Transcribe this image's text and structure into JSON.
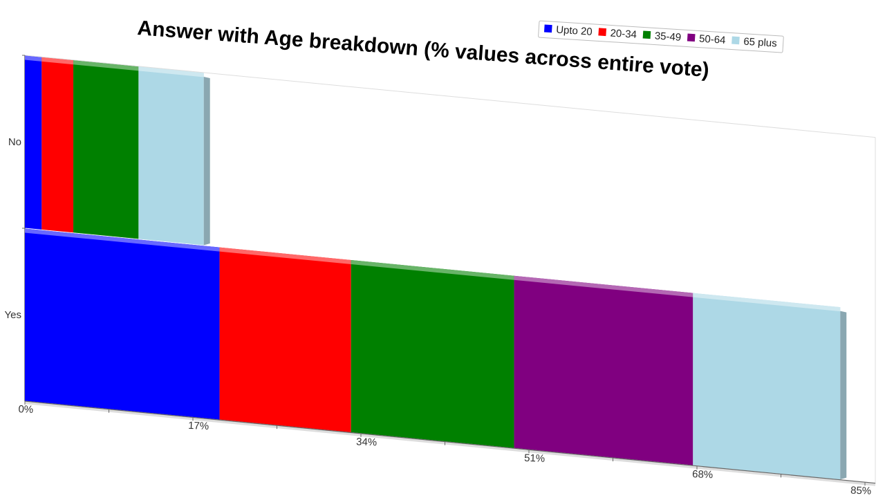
{
  "chart_data": {
    "type": "bar",
    "orientation": "horizontal",
    "stacked": true,
    "three_d": true,
    "title": "Answer with Age breakdown (% values across entire vote)",
    "categories": [
      "No",
      "Yes"
    ],
    "series": [
      {
        "name": "Upto 20",
        "color": "#0000ff",
        "values": [
          1.7,
          19.7
        ]
      },
      {
        "name": "20-34",
        "color": "#ff0000",
        "values": [
          3.2,
          13.3
        ]
      },
      {
        "name": "35-49",
        "color": "#008000",
        "values": [
          6.6,
          16.5
        ]
      },
      {
        "name": "50-64",
        "color": "#800080",
        "values": [
          0,
          18.1
        ]
      },
      {
        "name": "65 plus",
        "color": "#add8e6",
        "values": [
          6.6,
          14.9
        ]
      }
    ],
    "x_ticks": [
      "0%",
      "17%",
      "34%",
      "51%",
      "68%",
      "85%"
    ],
    "xlim": [
      0,
      85
    ],
    "legend_position": "top-right",
    "grid": false
  }
}
